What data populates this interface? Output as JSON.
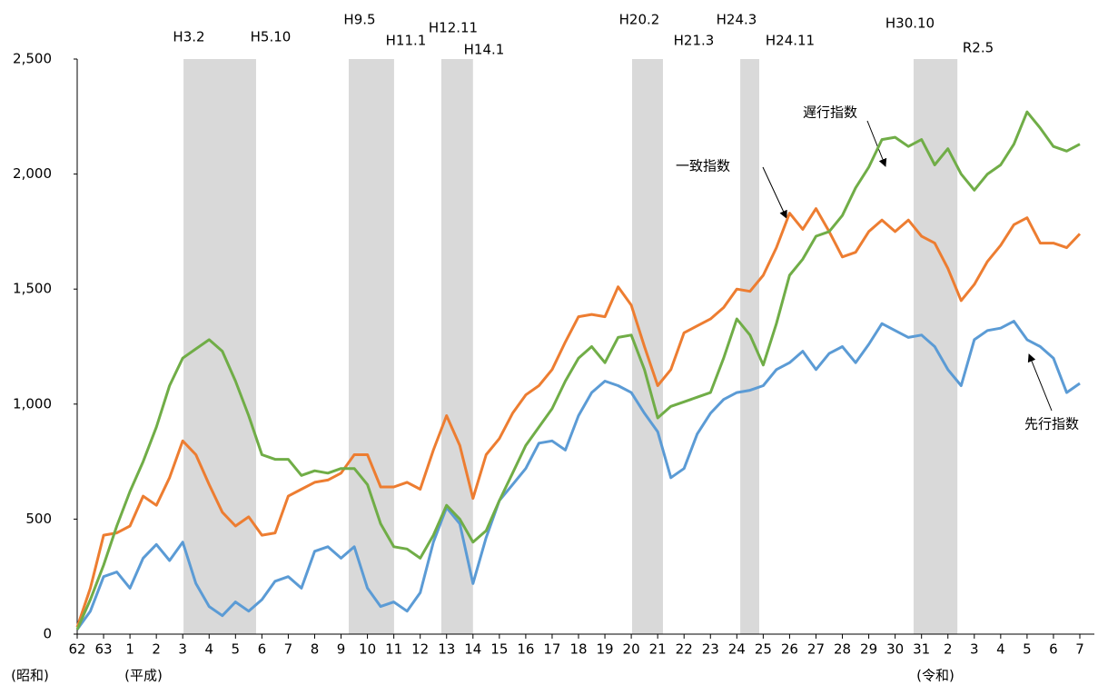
{
  "chart_data": {
    "type": "line",
    "x": [
      0,
      0.5,
      1,
      1.5,
      2,
      2.5,
      3,
      3.5,
      4,
      4.5,
      5,
      5.5,
      6,
      6.5,
      7,
      7.5,
      8,
      8.5,
      9,
      9.5,
      10,
      10.5,
      11,
      11.5,
      12,
      12.5,
      13,
      13.5,
      14,
      14.5,
      15,
      15.5,
      16,
      16.5,
      17,
      17.5,
      18,
      18.5,
      19,
      19.5,
      20,
      20.5,
      21,
      21.5,
      22,
      22.5,
      23,
      23.5,
      24,
      24.5,
      25,
      25.5,
      26,
      26.5,
      27,
      27.5,
      28,
      28.5,
      29,
      29.5,
      30,
      30.5,
      31,
      31.5,
      32,
      32.5,
      33,
      33.5,
      34,
      34.5,
      35,
      35.5,
      36,
      36.5,
      37,
      37.5,
      38
    ],
    "series": [
      {
        "name": "先行指数",
        "color": "#5b9bd5",
        "values": [
          20,
          100,
          250,
          270,
          200,
          330,
          390,
          320,
          400,
          220,
          120,
          80,
          140,
          100,
          150,
          230,
          250,
          200,
          360,
          380,
          330,
          380,
          200,
          120,
          140,
          100,
          180,
          400,
          550,
          480,
          220,
          420,
          580,
          650,
          720,
          830,
          840,
          800,
          950,
          1050,
          1100,
          1080,
          1050,
          960,
          880,
          680,
          720,
          870,
          960,
          1020,
          1050,
          1060,
          1080,
          1150,
          1180,
          1230,
          1150,
          1220,
          1250,
          1180,
          1260,
          1350,
          1320,
          1290,
          1300,
          1250,
          1150,
          1080,
          1280,
          1320,
          1330,
          1360,
          1280,
          1250,
          1200,
          1050,
          1090
        ]
      },
      {
        "name": "一致指数",
        "color": "#ed7d31",
        "values": [
          30,
          200,
          430,
          440,
          470,
          600,
          560,
          680,
          840,
          780,
          650,
          530,
          470,
          510,
          430,
          440,
          600,
          630,
          660,
          670,
          700,
          780,
          780,
          640,
          640,
          660,
          630,
          800,
          950,
          820,
          590,
          780,
          850,
          960,
          1040,
          1080,
          1150,
          1270,
          1380,
          1390,
          1380,
          1510,
          1430,
          1250,
          1080,
          1150,
          1310,
          1340,
          1370,
          1420,
          1500,
          1490,
          1560,
          1680,
          1830,
          1760,
          1850,
          1750,
          1640,
          1660,
          1750,
          1800,
          1750,
          1800,
          1730,
          1700,
          1590,
          1450,
          1520,
          1620,
          1690,
          1780,
          1810,
          1700,
          1700,
          1680,
          1740
        ]
      },
      {
        "name": "遅行指数",
        "color": "#70ad47",
        "values": [
          20,
          150,
          300,
          470,
          620,
          750,
          900,
          1080,
          1200,
          1240,
          1280,
          1230,
          1100,
          950,
          780,
          760,
          760,
          690,
          710,
          700,
          720,
          720,
          650,
          480,
          380,
          370,
          330,
          430,
          560,
          500,
          400,
          450,
          580,
          700,
          820,
          900,
          980,
          1100,
          1200,
          1250,
          1180,
          1290,
          1300,
          1150,
          940,
          990,
          1010,
          1030,
          1050,
          1200,
          1370,
          1300,
          1170,
          1350,
          1560,
          1630,
          1730,
          1750,
          1820,
          1940,
          2030,
          2150,
          2160,
          2120,
          2150,
          2040,
          2110,
          2000,
          1930,
          2000,
          2040,
          2130,
          2270,
          2200,
          2120,
          2100,
          2130
        ]
      }
    ],
    "xlim": [
      0,
      38.5
    ],
    "xticks": [
      {
        "value": 0,
        "label": "62"
      },
      {
        "value": 1,
        "label": "63"
      },
      {
        "value": 2,
        "label": "1"
      },
      {
        "value": 3,
        "label": "2"
      },
      {
        "value": 4,
        "label": "3"
      },
      {
        "value": 5,
        "label": "4"
      },
      {
        "value": 6,
        "label": "5"
      },
      {
        "value": 7,
        "label": "6"
      },
      {
        "value": 8,
        "label": "7"
      },
      {
        "value": 9,
        "label": "8"
      },
      {
        "value": 10,
        "label": "9"
      },
      {
        "value": 11,
        "label": "10"
      },
      {
        "value": 12,
        "label": "11"
      },
      {
        "value": 13,
        "label": "12"
      },
      {
        "value": 14,
        "label": "13"
      },
      {
        "value": 15,
        "label": "14"
      },
      {
        "value": 16,
        "label": "15"
      },
      {
        "value": 17,
        "label": "16"
      },
      {
        "value": 18,
        "label": "17"
      },
      {
        "value": 19,
        "label": "18"
      },
      {
        "value": 20,
        "label": "19"
      },
      {
        "value": 21,
        "label": "20"
      },
      {
        "value": 22,
        "label": "21"
      },
      {
        "value": 23,
        "label": "22"
      },
      {
        "value": 24,
        "label": "23"
      },
      {
        "value": 25,
        "label": "24"
      },
      {
        "value": 26,
        "label": "25"
      },
      {
        "value": 27,
        "label": "26"
      },
      {
        "value": 28,
        "label": "27"
      },
      {
        "value": 29,
        "label": "28"
      },
      {
        "value": 30,
        "label": "29"
      },
      {
        "value": 31,
        "label": "30"
      },
      {
        "value": 32,
        "label": "31"
      },
      {
        "value": 33,
        "label": "2"
      },
      {
        "value": 34,
        "label": "3"
      },
      {
        "value": 35,
        "label": "4"
      },
      {
        "value": 36,
        "label": "5"
      },
      {
        "value": 37,
        "label": "6"
      },
      {
        "value": 38,
        "label": "7"
      }
    ],
    "ylim": [
      0,
      2500
    ],
    "yticks": [
      0,
      500,
      {
        "value": 1000,
        "label": "1,000"
      },
      {
        "value": 1500,
        "label": "1,500"
      },
      {
        "value": 2000,
        "label": "2,000"
      },
      {
        "value": 2500,
        "label": "2,500"
      }
    ],
    "era_labels": [
      "(昭和)",
      "(平成)",
      "(令和)"
    ],
    "shaded_periods": [
      {
        "start": 4.03,
        "end": 6.78,
        "labels": [
          "H3.2",
          "H5.10"
        ]
      },
      {
        "start": 10.29,
        "end": 12.01,
        "labels": [
          "H9.5",
          "H11.1"
        ]
      },
      {
        "start": 13.8,
        "end": 15.0,
        "labels": [
          "H12.11",
          "H14.1"
        ]
      },
      {
        "start": 21.03,
        "end": 22.2,
        "labels": [
          "H20.2",
          "H21.3"
        ]
      },
      {
        "start": 25.13,
        "end": 25.85,
        "labels": [
          "H24.3",
          "H24.11"
        ]
      },
      {
        "start": 31.7,
        "end": 33.36,
        "labels": [
          "H30.10",
          "R2.5"
        ]
      }
    ],
    "shade_color": "#d9d9d9"
  }
}
